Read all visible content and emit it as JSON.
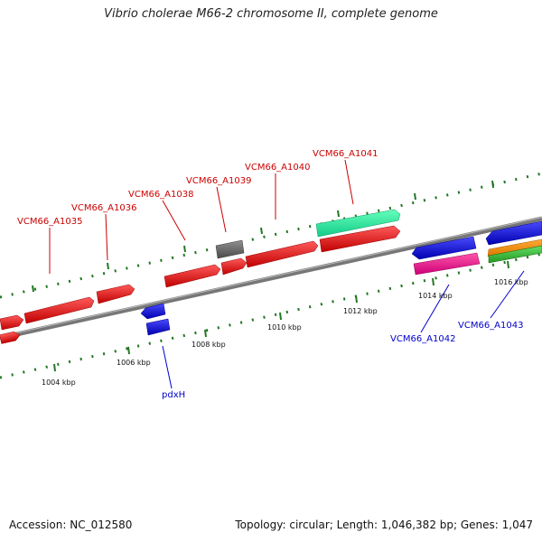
{
  "title": "Vibrio cholerae M66-2 chromosome II, complete genome",
  "footer": {
    "accession": "Accession: NC_012580",
    "summary": "Topology: circular; Length: 1,046,382 bp; Genes: 1,047"
  },
  "scale_labels": [
    "1004 kbp",
    "1006 kbp",
    "1008 kbp",
    "1010 kbp",
    "1012 kbp",
    "1014 kbp",
    "1016 kbp"
  ],
  "gene_labels": {
    "VCM66_A1035": "VCM66_A1035",
    "VCM66_A1036": "VCM66_A1036",
    "VCM66_A1038": "VCM66_A1038",
    "VCM66_A1039": "VCM66_A1039",
    "VCM66_A1040": "VCM66_A1040",
    "VCM66_A1041": "VCM66_A1041",
    "VCM66_A1042": "VCM66_A1042",
    "VCM66_A1043": "VCM66_A1043",
    "pdxH": "pdxH"
  },
  "colors": {
    "red": "#ee0000",
    "blue": "#0000dd",
    "gray": "#666666",
    "teal": "#22ee99",
    "pink": "#ee1188",
    "orange": "#ff8800",
    "green": "#33bb33",
    "tick": "#227722",
    "label_red": "#cc0000",
    "label_blue": "#0000cc"
  }
}
